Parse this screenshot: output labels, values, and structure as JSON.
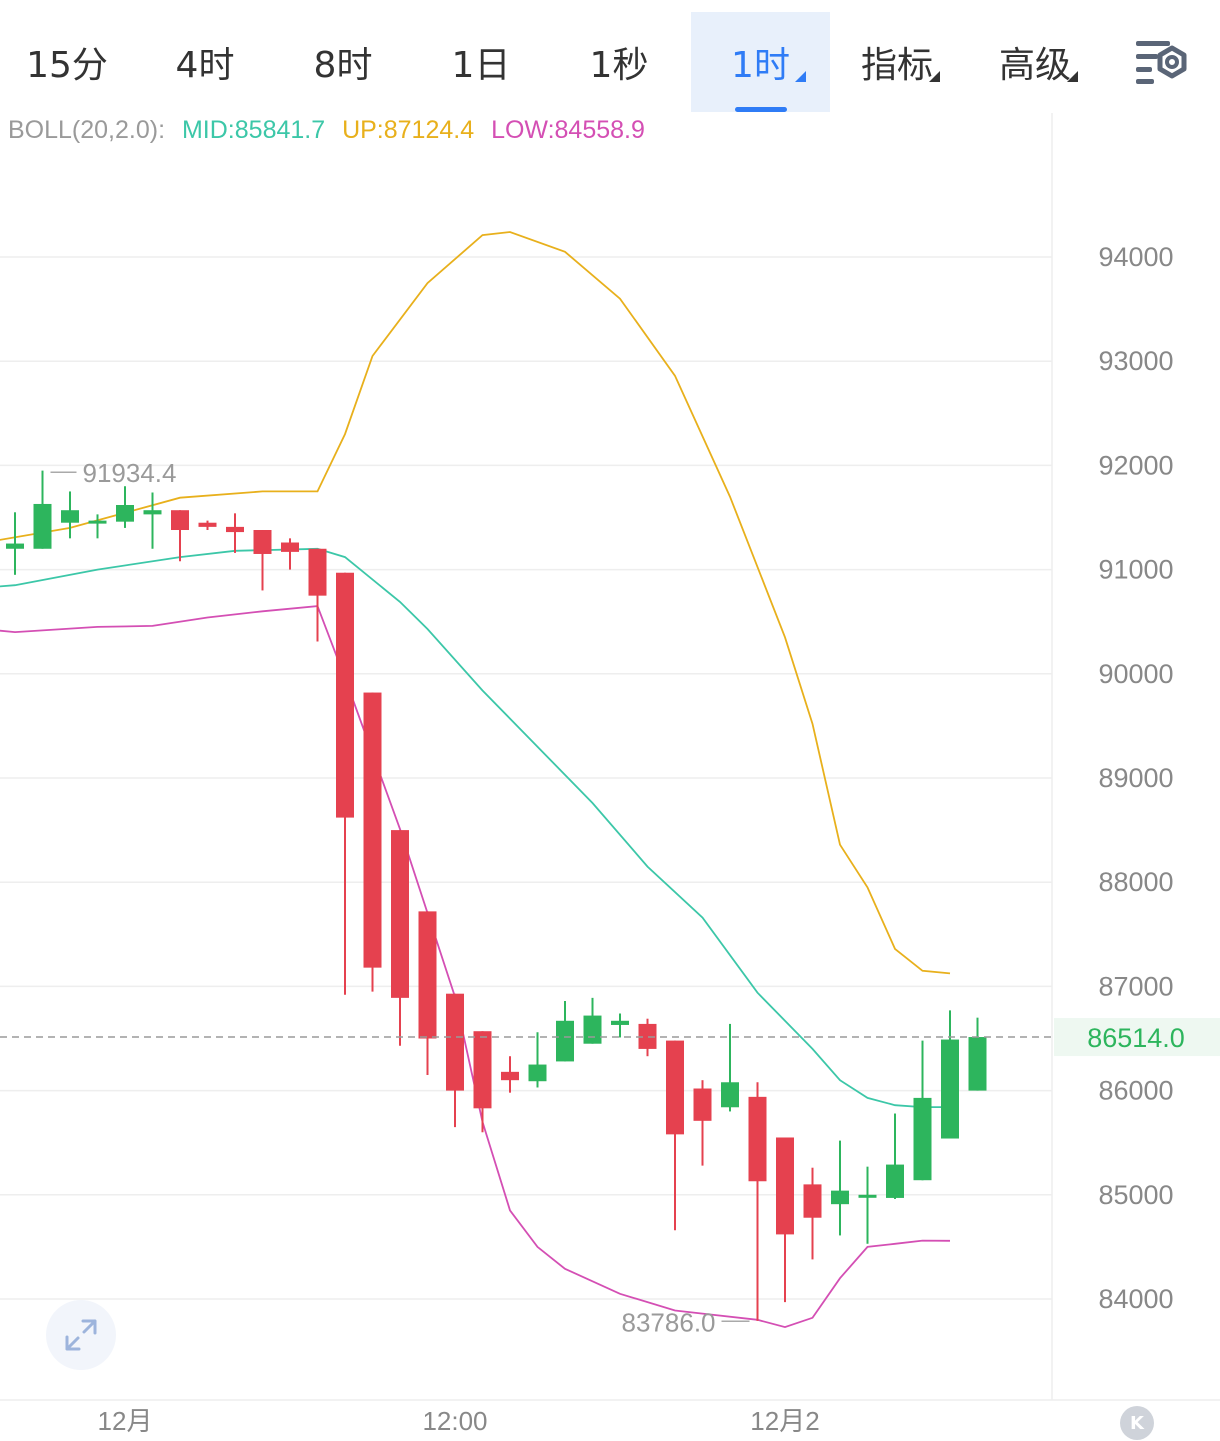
{
  "tabs": [
    {
      "label": "15分",
      "active": false,
      "dropdown": false
    },
    {
      "label": "4时",
      "active": false,
      "dropdown": false
    },
    {
      "label": "8时",
      "active": false,
      "dropdown": false
    },
    {
      "label": "1日",
      "active": false,
      "dropdown": false
    },
    {
      "label": "1秒",
      "active": false,
      "dropdown": false
    },
    {
      "label": "1时",
      "active": true,
      "dropdown": true
    },
    {
      "label": "指标",
      "active": false,
      "dropdown": true
    },
    {
      "label": "高级",
      "active": false,
      "dropdown": true
    }
  ],
  "indicator": {
    "name": "BOLL(20,2.0):",
    "mid": "MID:85841.7",
    "up": "UP:87124.4",
    "low": "LOW:84558.9"
  },
  "colors": {
    "up": "#2db55d",
    "down": "#e5414f",
    "mid": "#3cc7a8",
    "upper": "#e8b01c",
    "lower": "#d44fb4",
    "accent": "#2f7cf6",
    "grid": "#eeeeee",
    "axis_text": "#888888"
  },
  "icons": {
    "settings": "chart-settings-icon",
    "expand": "expand-arrows-icon",
    "kline": "k-logo-icon"
  },
  "chart_data": {
    "type": "candlestick",
    "title": "",
    "ylim": [
      83000,
      95000
    ],
    "y_ticks": [
      "94000",
      "93000",
      "92000",
      "91000",
      "90000",
      "89000",
      "88000",
      "87000",
      "86000",
      "85000",
      "84000"
    ],
    "x_tick_labels": [
      {
        "label": "12月",
        "index": 4
      },
      {
        "label": "12:00",
        "index": 16
      },
      {
        "label": "12月2",
        "index": 28
      }
    ],
    "last_price": "86514.0",
    "max_label": "91934.4",
    "min_label": "83786.0",
    "candles": [
      {
        "o": 91200,
        "h": 91550,
        "l": 90950,
        "c": 91250
      },
      {
        "o": 91200,
        "h": 91950,
        "l": 91200,
        "c": 91630
      },
      {
        "o": 91450,
        "h": 91750,
        "l": 91300,
        "c": 91570
      },
      {
        "o": 91450,
        "h": 91530,
        "l": 91300,
        "c": 91470
      },
      {
        "o": 91460,
        "h": 91800,
        "l": 91400,
        "c": 91620
      },
      {
        "o": 91530,
        "h": 91740,
        "l": 91200,
        "c": 91570
      },
      {
        "o": 91570,
        "h": 91570,
        "l": 91080,
        "c": 91380
      },
      {
        "o": 91450,
        "h": 91470,
        "l": 91380,
        "c": 91410
      },
      {
        "o": 91410,
        "h": 91540,
        "l": 91160,
        "c": 91360
      },
      {
        "o": 91380,
        "h": 91380,
        "l": 90800,
        "c": 91150
      },
      {
        "o": 91260,
        "h": 91300,
        "l": 91000,
        "c": 91170
      },
      {
        "o": 91200,
        "h": 91200,
        "l": 90310,
        "c": 90750
      },
      {
        "o": 90970,
        "h": 90970,
        "l": 86920,
        "c": 88620
      },
      {
        "o": 89820,
        "h": 89820,
        "l": 86950,
        "c": 87180
      },
      {
        "o": 88500,
        "h": 88500,
        "l": 86430,
        "c": 86890
      },
      {
        "o": 87720,
        "h": 87720,
        "l": 86150,
        "c": 86500
      },
      {
        "o": 86930,
        "h": 86930,
        "l": 85650,
        "c": 86000
      },
      {
        "o": 86570,
        "h": 86570,
        "l": 85600,
        "c": 85830
      },
      {
        "o": 86180,
        "h": 86330,
        "l": 85980,
        "c": 86100
      },
      {
        "o": 86090,
        "h": 86560,
        "l": 86030,
        "c": 86250
      },
      {
        "o": 86280,
        "h": 86860,
        "l": 86280,
        "c": 86670
      },
      {
        "o": 86450,
        "h": 86890,
        "l": 86450,
        "c": 86720
      },
      {
        "o": 86630,
        "h": 86740,
        "l": 86510,
        "c": 86670
      },
      {
        "o": 86640,
        "h": 86690,
        "l": 86330,
        "c": 86400
      },
      {
        "o": 86480,
        "h": 86480,
        "l": 84660,
        "c": 85580
      },
      {
        "o": 86020,
        "h": 86100,
        "l": 85280,
        "c": 85710
      },
      {
        "o": 85840,
        "h": 86640,
        "l": 85800,
        "c": 86080
      },
      {
        "o": 85940,
        "h": 86080,
        "l": 83790,
        "c": 85130
      },
      {
        "o": 85550,
        "h": 85550,
        "l": 83970,
        "c": 84620
      },
      {
        "o": 85100,
        "h": 85260,
        "l": 84380,
        "c": 84780
      },
      {
        "o": 84910,
        "h": 85520,
        "l": 84610,
        "c": 85040
      },
      {
        "o": 85000,
        "h": 85270,
        "l": 84530,
        "c": 85000
      },
      {
        "o": 84970,
        "h": 85780,
        "l": 84960,
        "c": 85290
      },
      {
        "o": 85140,
        "h": 86480,
        "l": 85140,
        "c": 85930
      },
      {
        "o": 85540,
        "h": 86770,
        "l": 85540,
        "c": 86490
      },
      {
        "o": 86000,
        "h": 86700,
        "l": 86000,
        "c": 86514
      }
    ],
    "bands": {
      "upper": [
        [
          -2,
          91220
        ],
        [
          2,
          91400
        ],
        [
          6,
          91690
        ],
        [
          9,
          91750
        ],
        [
          11,
          91750
        ],
        [
          12,
          92300
        ],
        [
          13,
          93050
        ],
        [
          15,
          93750
        ],
        [
          17,
          94210
        ],
        [
          18,
          94240
        ],
        [
          20,
          94050
        ],
        [
          22,
          93600
        ],
        [
          24,
          92860
        ],
        [
          26,
          91700
        ],
        [
          28,
          90350
        ],
        [
          29,
          89520
        ],
        [
          30,
          88360
        ],
        [
          31,
          87950
        ],
        [
          32,
          87360
        ],
        [
          33,
          87150
        ],
        [
          34,
          87125
        ]
      ],
      "mid": [
        [
          -2,
          90810
        ],
        [
          0,
          90850
        ],
        [
          3,
          91000
        ],
        [
          6,
          91120
        ],
        [
          8,
          91180
        ],
        [
          11,
          91200
        ],
        [
          12,
          91120
        ],
        [
          14,
          90690
        ],
        [
          15,
          90430
        ],
        [
          17,
          89840
        ],
        [
          18,
          89570
        ],
        [
          21,
          88760
        ],
        [
          23,
          88150
        ],
        [
          25,
          87660
        ],
        [
          27,
          86940
        ],
        [
          29,
          86400
        ],
        [
          30,
          86100
        ],
        [
          31,
          85930
        ],
        [
          32,
          85860
        ],
        [
          33,
          85842
        ],
        [
          34,
          85842
        ]
      ],
      "lower": [
        [
          -2,
          90450
        ],
        [
          0,
          90400
        ],
        [
          3,
          90450
        ],
        [
          5,
          90460
        ],
        [
          7,
          90540
        ],
        [
          9,
          90600
        ],
        [
          11,
          90650
        ],
        [
          12,
          89960
        ],
        [
          14,
          88510
        ],
        [
          16,
          86900
        ],
        [
          17,
          85700
        ],
        [
          18,
          84850
        ],
        [
          19,
          84500
        ],
        [
          20,
          84290
        ],
        [
          22,
          84050
        ],
        [
          24,
          83890
        ],
        [
          25,
          83860
        ],
        [
          27,
          83800
        ],
        [
          28,
          83730
        ],
        [
          29,
          83820
        ],
        [
          30,
          84200
        ],
        [
          31,
          84500
        ],
        [
          32,
          84530
        ],
        [
          33,
          84560
        ],
        [
          34,
          84559
        ]
      ]
    }
  }
}
